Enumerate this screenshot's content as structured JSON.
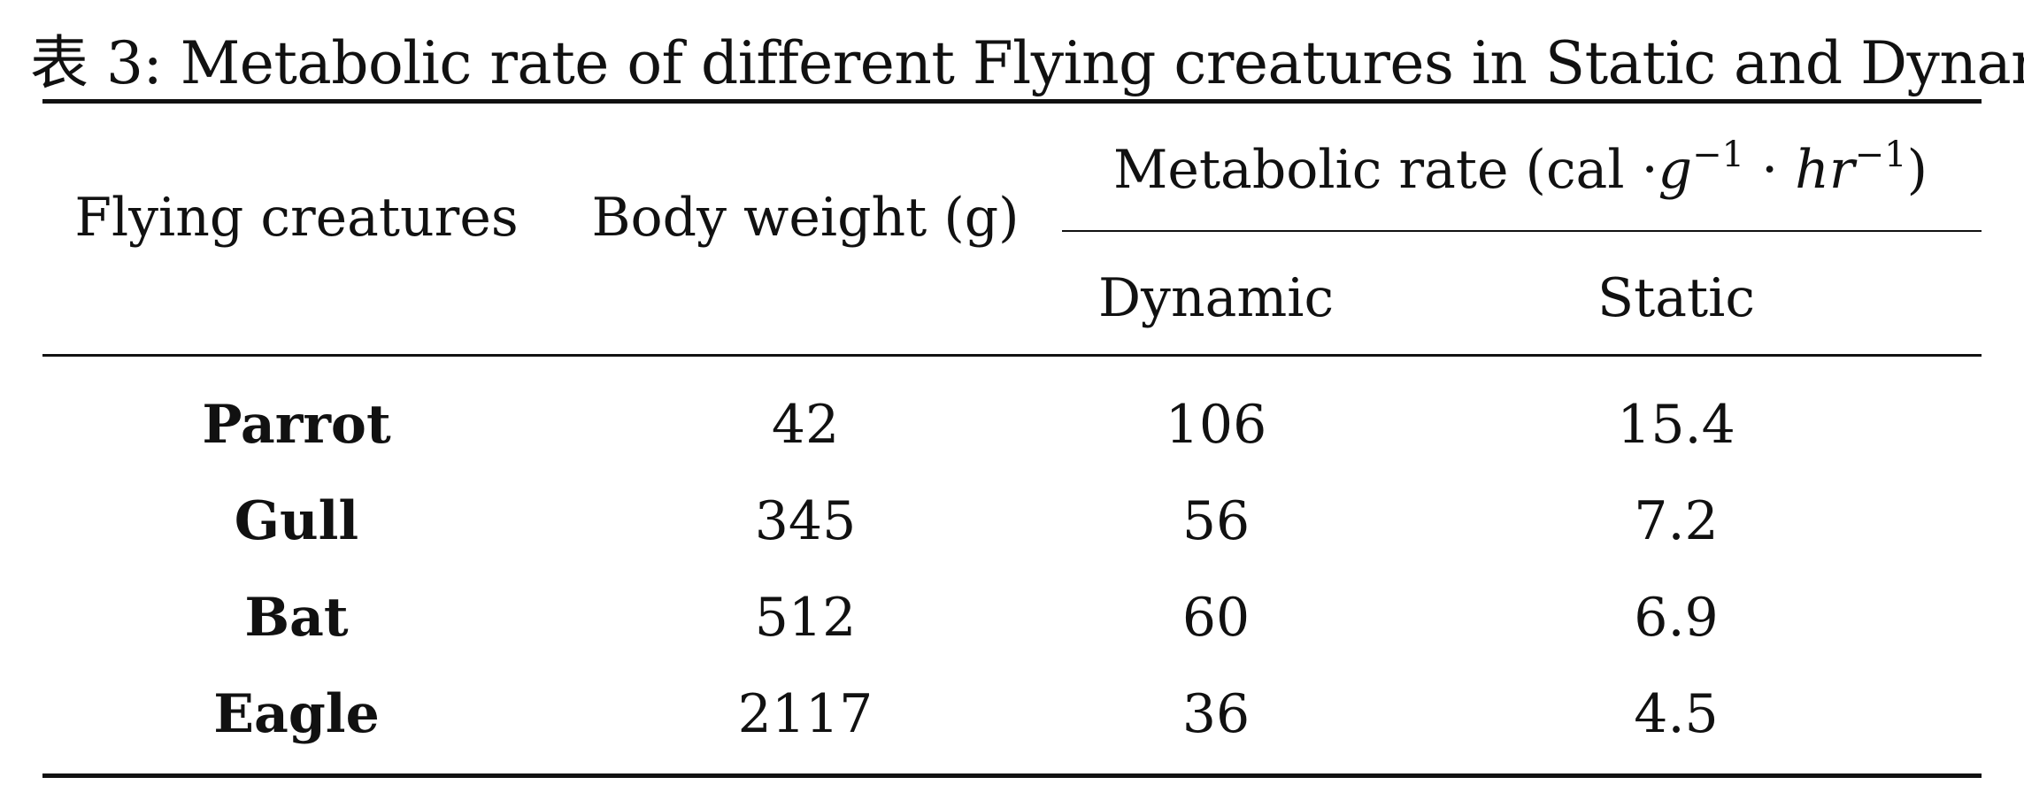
{
  "caption": {
    "label": "表 3:",
    "text": "Metabolic rate of different Flying creatures in Static and Dynamic"
  },
  "table": {
    "headers": {
      "creature": "Flying creatures",
      "body_weight": "Body weight (g)",
      "metabolic_group": {
        "prefix": "Metabolic rate (cal ·",
        "g": "g",
        "exp1": "−1",
        "dot": " · ",
        "hr": "hr",
        "exp2": "−1",
        "suffix": ")"
      },
      "dynamic": "Dynamic",
      "static": "Static"
    },
    "rows": [
      {
        "creature": "Parrot",
        "body_weight": "42",
        "dynamic": "106",
        "static": "15.4"
      },
      {
        "creature": "Gull",
        "body_weight": "345",
        "dynamic": "56",
        "static": "7.2"
      },
      {
        "creature": "Bat",
        "body_weight": "512",
        "dynamic": "60",
        "static": "6.9"
      },
      {
        "creature": "Eagle",
        "body_weight": "2117",
        "dynamic": "36",
        "static": "4.5"
      }
    ]
  }
}
